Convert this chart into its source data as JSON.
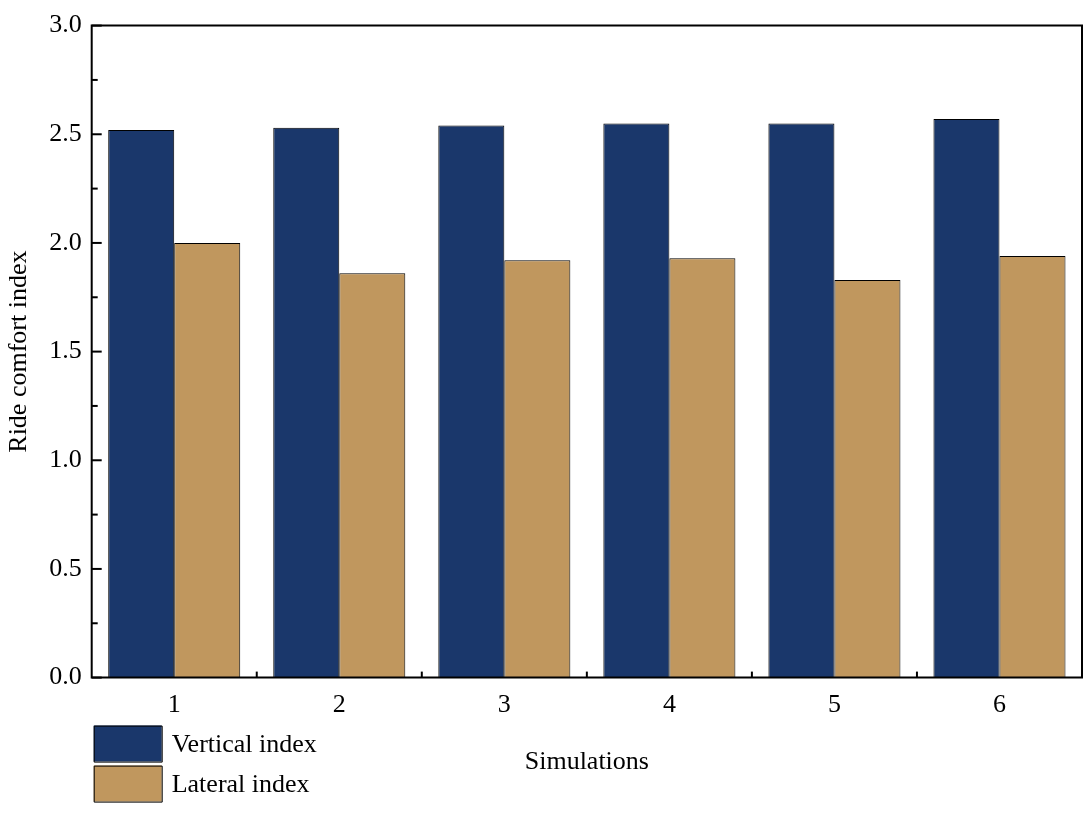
{
  "chart_data": {
    "type": "bar",
    "xlabel": "Simulations",
    "ylabel": "Ride comfort index",
    "categories": [
      "1",
      "2",
      "3",
      "4",
      "5",
      "6"
    ],
    "series": [
      {
        "name": "Vertical index",
        "color": "#1a376b",
        "values": [
          2.52,
          2.53,
          2.54,
          2.55,
          2.55,
          2.57
        ]
      },
      {
        "name": "Lateral index",
        "color": "#c0975e",
        "values": [
          2.0,
          1.86,
          1.92,
          1.93,
          1.83,
          1.94
        ]
      }
    ],
    "ylim": [
      0,
      3.0
    ],
    "yticks": [
      {
        "value": 0,
        "label": "0.0"
      },
      {
        "value": 0.25,
        "label": null
      },
      {
        "value": 0.5,
        "label": "0.5"
      },
      {
        "value": 0.75,
        "label": null
      },
      {
        "value": 1,
        "label": "1.0"
      },
      {
        "value": 1.25,
        "label": null
      },
      {
        "value": 1.5,
        "label": "1.5"
      },
      {
        "value": 1.75,
        "label": null
      },
      {
        "value": 2,
        "label": "2.0"
      },
      {
        "value": 2.25,
        "label": null
      },
      {
        "value": 2.5,
        "label": "2.5"
      },
      {
        "value": 2.75,
        "label": null
      },
      {
        "value": 3,
        "label": "3.0"
      }
    ],
    "grid": false,
    "legend": "bottom left"
  }
}
